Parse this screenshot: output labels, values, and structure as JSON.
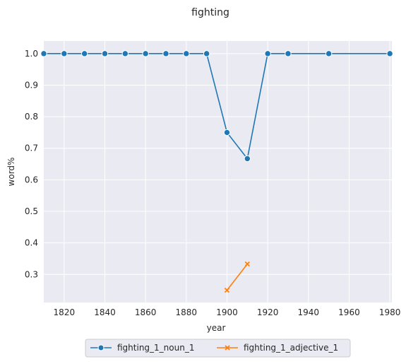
{
  "chart_data": {
    "type": "line",
    "title": "fighting",
    "xlabel": "year",
    "ylabel": "word%",
    "xlim": [
      1810,
      1981
    ],
    "ylim": [
      0.211,
      1.04
    ],
    "xticks": [
      1820,
      1840,
      1860,
      1880,
      1900,
      1920,
      1940,
      1960,
      1980
    ],
    "yticks": [
      0.3,
      0.4,
      0.5,
      0.6,
      0.7,
      0.8,
      0.9,
      1.0
    ],
    "grid": true,
    "legend_position": "bottom-center",
    "series": [
      {
        "name": "fighting_1_noun_1",
        "color": "#1f77b4",
        "marker": "circle",
        "x": [
          1810,
          1820,
          1830,
          1840,
          1850,
          1860,
          1870,
          1880,
          1890,
          1900,
          1910,
          1920,
          1930,
          1950,
          1980
        ],
        "y": [
          1.0,
          1.0,
          1.0,
          1.0,
          1.0,
          1.0,
          1.0,
          1.0,
          1.0,
          0.75,
          0.667,
          1.0,
          1.0,
          1.0,
          1.0
        ]
      },
      {
        "name": "fighting_1_adjective_1",
        "color": "#ff7f0e",
        "marker": "x",
        "x": [
          1900,
          1910
        ],
        "y": [
          0.25,
          0.333
        ]
      }
    ]
  }
}
